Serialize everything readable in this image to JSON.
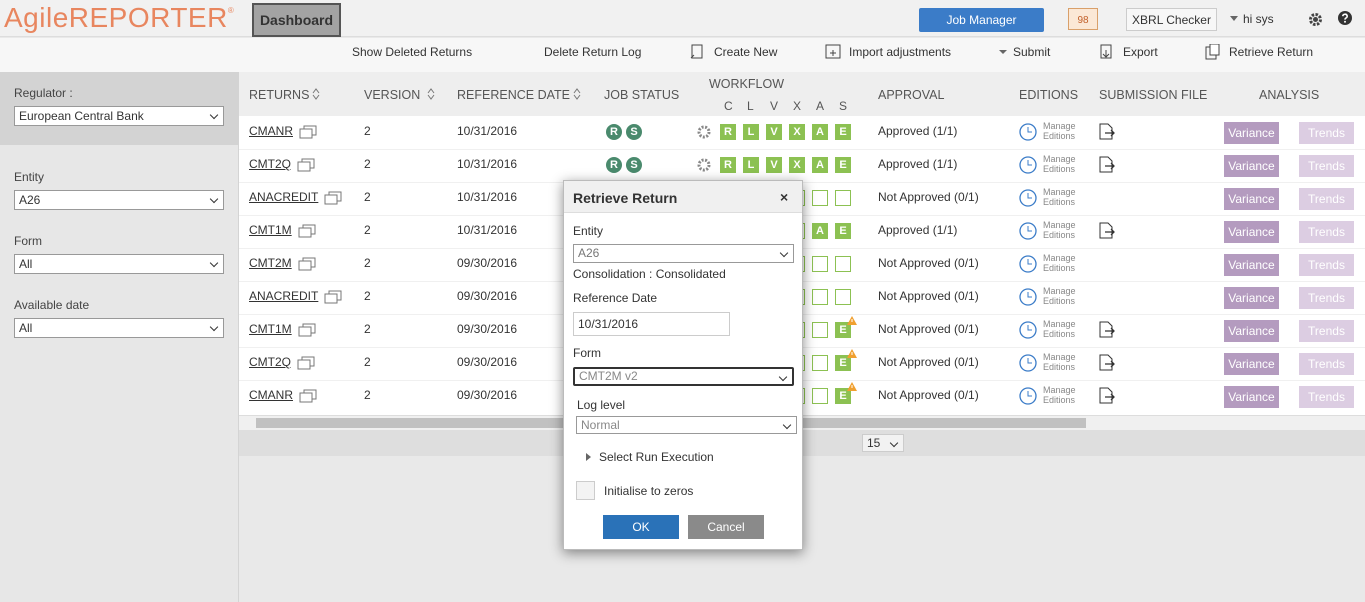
{
  "header": {
    "logo": "AgileREPORTER",
    "logo_mark": "®",
    "dashboard": "Dashboard",
    "job_manager": "Job Manager",
    "notifications": "98",
    "xbrl_checker": "XBRL Checker",
    "user": "hi sys"
  },
  "toolbar": [
    "Show Deleted Returns",
    "Delete Return Log",
    "Create New",
    "Import adjustments",
    "Submit",
    "Export",
    "Retrieve Return"
  ],
  "filters": [
    {
      "label": "Regulator :",
      "value": "European Central Bank"
    },
    {
      "label": "Entity",
      "value": "A26"
    },
    {
      "label": "Form",
      "value": "All"
    },
    {
      "label": "Available date",
      "value": "All"
    }
  ],
  "table": {
    "columns": [
      "RETURNS",
      "VERSION",
      "REFERENCE DATE",
      "JOB STATUS",
      "WORKFLOW",
      "APPROVAL",
      "EDITIONS",
      "SUBMISSION FILE",
      "ANALYSIS"
    ],
    "workflow_steps": [
      "C",
      "L",
      "V",
      "X",
      "A",
      "S"
    ],
    "editions_label": [
      "Manage",
      "Editions"
    ],
    "analysis_buttons": [
      "Variance",
      "Trends"
    ],
    "page_size": "15",
    "rows": [
      {
        "return": "CMANR",
        "version": 2,
        "reference_date": "10/31/2016",
        "job_status": [
          "R",
          "S"
        ],
        "workflow": [
          "R",
          "L",
          "V",
          "X",
          "A",
          "E"
        ],
        "warning": false,
        "approval": "Approved (1/1)",
        "submission_file": true
      },
      {
        "return": "CMT2Q",
        "version": 2,
        "reference_date": "10/31/2016",
        "job_status": [
          "R",
          "S"
        ],
        "workflow": [
          "R",
          "L",
          "V",
          "X",
          "A",
          "E"
        ],
        "warning": false,
        "approval": "Approved (1/1)",
        "submission_file": true
      },
      {
        "return": "ANACREDIT",
        "version": 2,
        "reference_date": "10/31/2016",
        "job_status": [],
        "workflow": [
          null,
          null,
          null,
          null,
          null,
          null
        ],
        "warning": false,
        "approval": "Not Approved (0/1)",
        "submission_file": false
      },
      {
        "return": "CMT1M",
        "version": 2,
        "reference_date": "10/31/2016",
        "job_status": [],
        "workflow": [
          null,
          null,
          null,
          null,
          "A",
          "E"
        ],
        "warning": false,
        "approval": "Approved (1/1)",
        "submission_file": true
      },
      {
        "return": "CMT2M",
        "version": 2,
        "reference_date": "09/30/2016",
        "job_status": [],
        "workflow": [
          null,
          null,
          null,
          null,
          null,
          null
        ],
        "warning": false,
        "approval": "Not Approved (0/1)",
        "submission_file": false
      },
      {
        "return": "ANACREDIT",
        "version": 2,
        "reference_date": "09/30/2016",
        "job_status": [],
        "workflow": [
          null,
          null,
          null,
          null,
          null,
          null
        ],
        "warning": false,
        "approval": "Not Approved (0/1)",
        "submission_file": false
      },
      {
        "return": "CMT1M",
        "version": 2,
        "reference_date": "09/30/2016",
        "job_status": [],
        "workflow": [
          null,
          null,
          null,
          null,
          null,
          "E"
        ],
        "warning": true,
        "approval": "Not Approved (0/1)",
        "submission_file": true
      },
      {
        "return": "CMT2Q",
        "version": 2,
        "reference_date": "09/30/2016",
        "job_status": [],
        "workflow": [
          null,
          null,
          null,
          null,
          null,
          "E"
        ],
        "warning": true,
        "approval": "Not Approved (0/1)",
        "submission_file": true
      },
      {
        "return": "CMANR",
        "version": 2,
        "reference_date": "09/30/2016",
        "job_status": [],
        "workflow": [
          null,
          null,
          null,
          null,
          null,
          "E"
        ],
        "warning": true,
        "approval": "Not Approved (0/1)",
        "submission_file": true
      }
    ]
  },
  "dialog": {
    "title": "Retrieve Return",
    "close": "×",
    "entity_label": "Entity",
    "entity": "A26",
    "consolidation": "Consolidation : Consolidated",
    "reference_date_label": "Reference Date",
    "reference_date": "10/31/2016",
    "form_label": "Form",
    "form": "CMT2M v2",
    "log_level_label": "Log level",
    "log_level": "Normal",
    "run_execution": "Select Run Execution",
    "initialise": "Initialise to zeros",
    "ok": "OK",
    "cancel": "Cancel"
  }
}
